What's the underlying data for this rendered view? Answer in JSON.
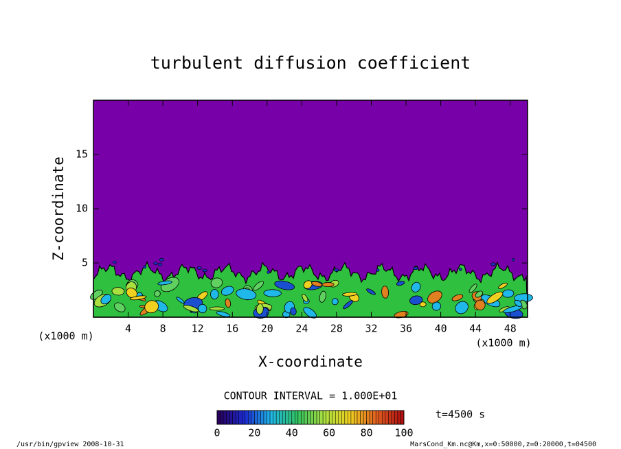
{
  "chart_data": {
    "type": "contour",
    "title": "turbulent diffusion coefficient",
    "xlabel": "X-coordinate",
    "ylabel": "Z-coordinate",
    "axis_unit_label": "(x1000 m)",
    "xlim": [
      0,
      50
    ],
    "xticks": [
      4,
      8,
      12,
      16,
      20,
      24,
      28,
      32,
      36,
      40,
      44,
      48
    ],
    "ylim": [
      0,
      20
    ],
    "yticks": [
      5,
      10,
      15
    ],
    "contour_interval_label": "CONTOUR INTERVAL = 1.000E+01",
    "colorbar": {
      "lim": [
        0,
        100
      ],
      "ticks": [
        0,
        20,
        40,
        60,
        80,
        100
      ],
      "colormap": [
        "#2a0060",
        "#1a2ad0",
        "#20b8e8",
        "#30c060",
        "#a8e040",
        "#f0d020",
        "#e06020",
        "#b01010"
      ]
    },
    "time_label": "t=4500 s",
    "footer_left": "/usr/bin/gpview   2008-10-31",
    "footer_right": "MarsCond_Km.nc@Km,x=0:50000,z=0:20000,t=04500"
  }
}
